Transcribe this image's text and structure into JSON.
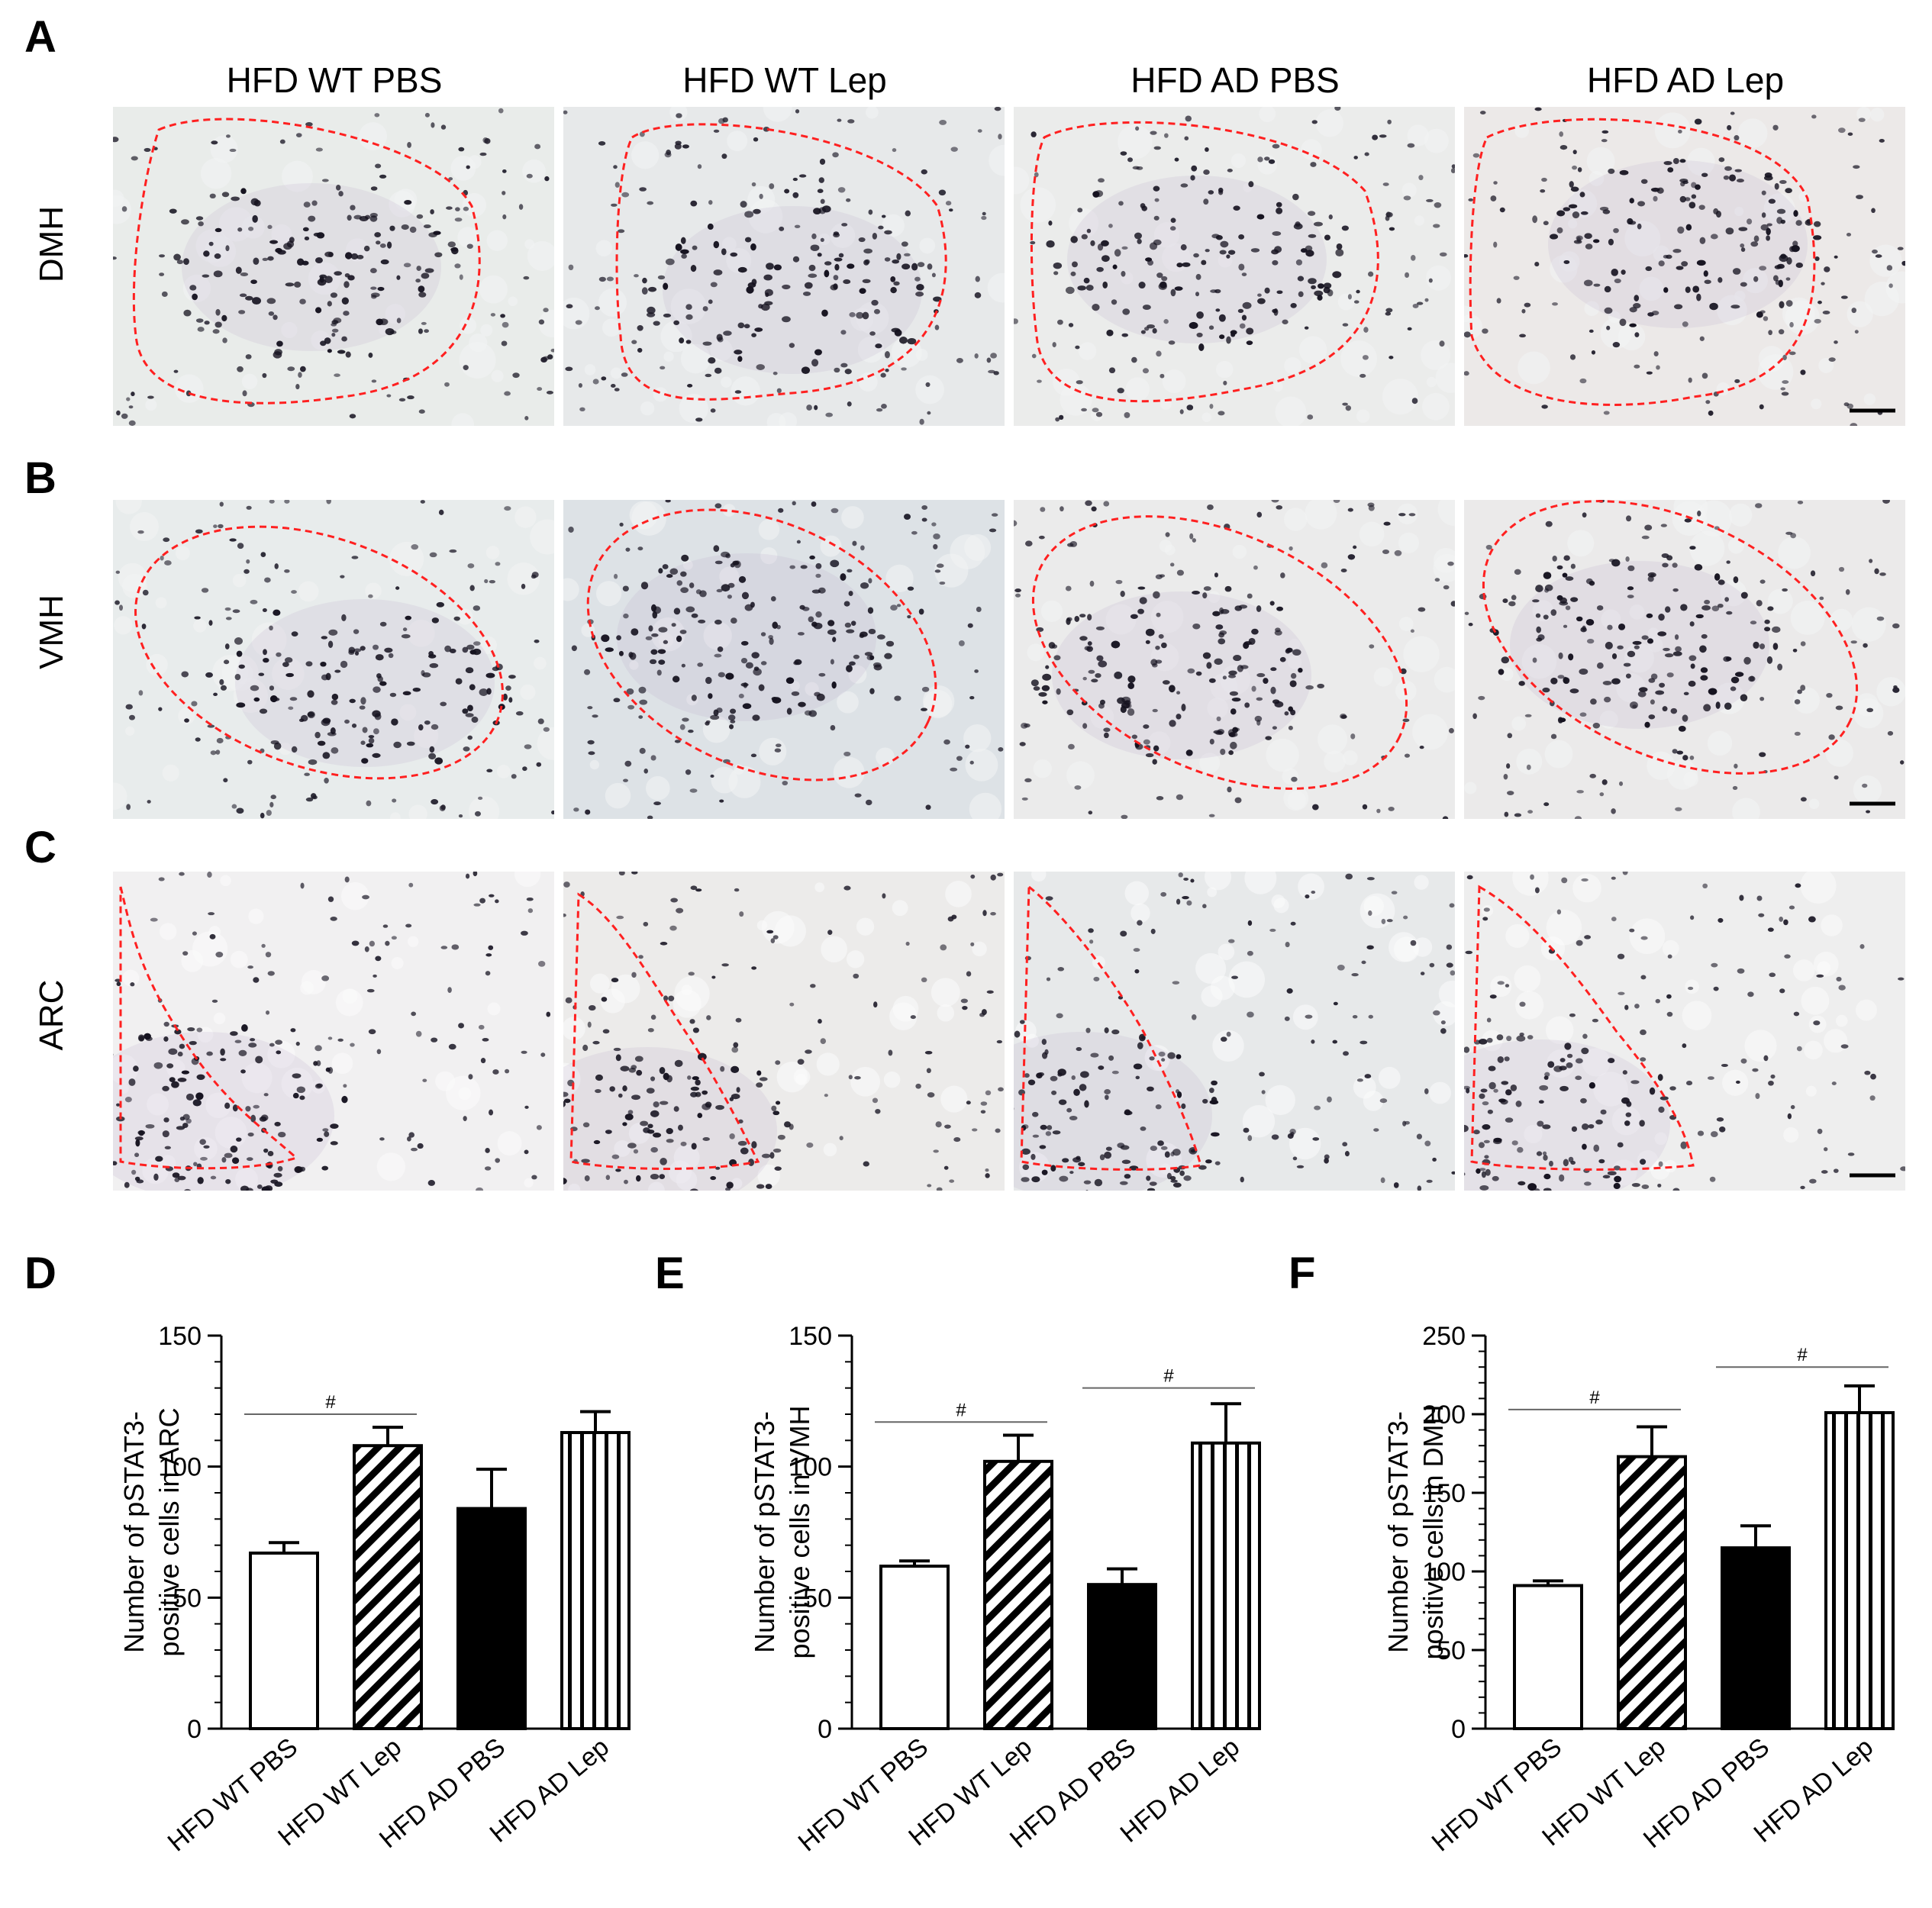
{
  "panels": {
    "A": "A",
    "B": "B",
    "C": "C",
    "D": "D",
    "E": "E",
    "F": "F"
  },
  "columns": [
    "HFD WT PBS",
    "HFD WT Lep",
    "HFD AD PBS",
    "HFD AD Lep"
  ],
  "rows": [
    "DMH",
    "VMH",
    "ARC"
  ],
  "chart_data": [
    {
      "type": "bar",
      "panel": "D",
      "categories": [
        "HFD WT PBS",
        "HFD WT Lep",
        "HFD AD PBS",
        "HFD AD Lep"
      ],
      "values": [
        67,
        108,
        84,
        113
      ],
      "errors": [
        4,
        7,
        15,
        8
      ],
      "fills": [
        "white",
        "diagonal",
        "black",
        "vertical"
      ],
      "ylabel_line1": "Number of pSTAT3-",
      "ylabel_line2": "positive cells in ARC",
      "ylim": [
        0,
        150
      ],
      "yticks": [
        0,
        50,
        100,
        150
      ],
      "minor_step": 10,
      "significance": [
        {
          "from": 0,
          "to": 1,
          "y": 120,
          "label": "#"
        }
      ]
    },
    {
      "type": "bar",
      "panel": "E",
      "categories": [
        "HFD WT PBS",
        "HFD WT Lep",
        "HFD AD PBS",
        "HFD AD Lep"
      ],
      "values": [
        62,
        102,
        55,
        109
      ],
      "errors": [
        2,
        10,
        6,
        15
      ],
      "fills": [
        "white",
        "diagonal",
        "black",
        "vertical"
      ],
      "ylabel_line1": "Number of pSTAT3-",
      "ylabel_line2": "positive cells in VMH",
      "ylim": [
        0,
        150
      ],
      "yticks": [
        0,
        50,
        100,
        150
      ],
      "minor_step": 10,
      "significance": [
        {
          "from": 0,
          "to": 1,
          "y": 117,
          "label": "#"
        },
        {
          "from": 2,
          "to": 3,
          "y": 130,
          "label": "#"
        }
      ]
    },
    {
      "type": "bar",
      "panel": "F",
      "categories": [
        "HFD WT PBS",
        "HFD WT Lep",
        "HFD AD PBS",
        "HFD AD Lep"
      ],
      "values": [
        91,
        173,
        115,
        201
      ],
      "errors": [
        3,
        19,
        14,
        17
      ],
      "fills": [
        "white",
        "diagonal",
        "black",
        "vertical"
      ],
      "ylabel_line1": "Number of pSTAT3-",
      "ylabel_line2": "positive cells in DMH",
      "ylim": [
        0,
        250
      ],
      "yticks": [
        0,
        50,
        100,
        150,
        200,
        250
      ],
      "minor_step": 10,
      "significance": [
        {
          "from": 0,
          "to": 1,
          "y": 203,
          "label": "#"
        },
        {
          "from": 2,
          "to": 3,
          "y": 230,
          "label": "#"
        }
      ]
    }
  ]
}
